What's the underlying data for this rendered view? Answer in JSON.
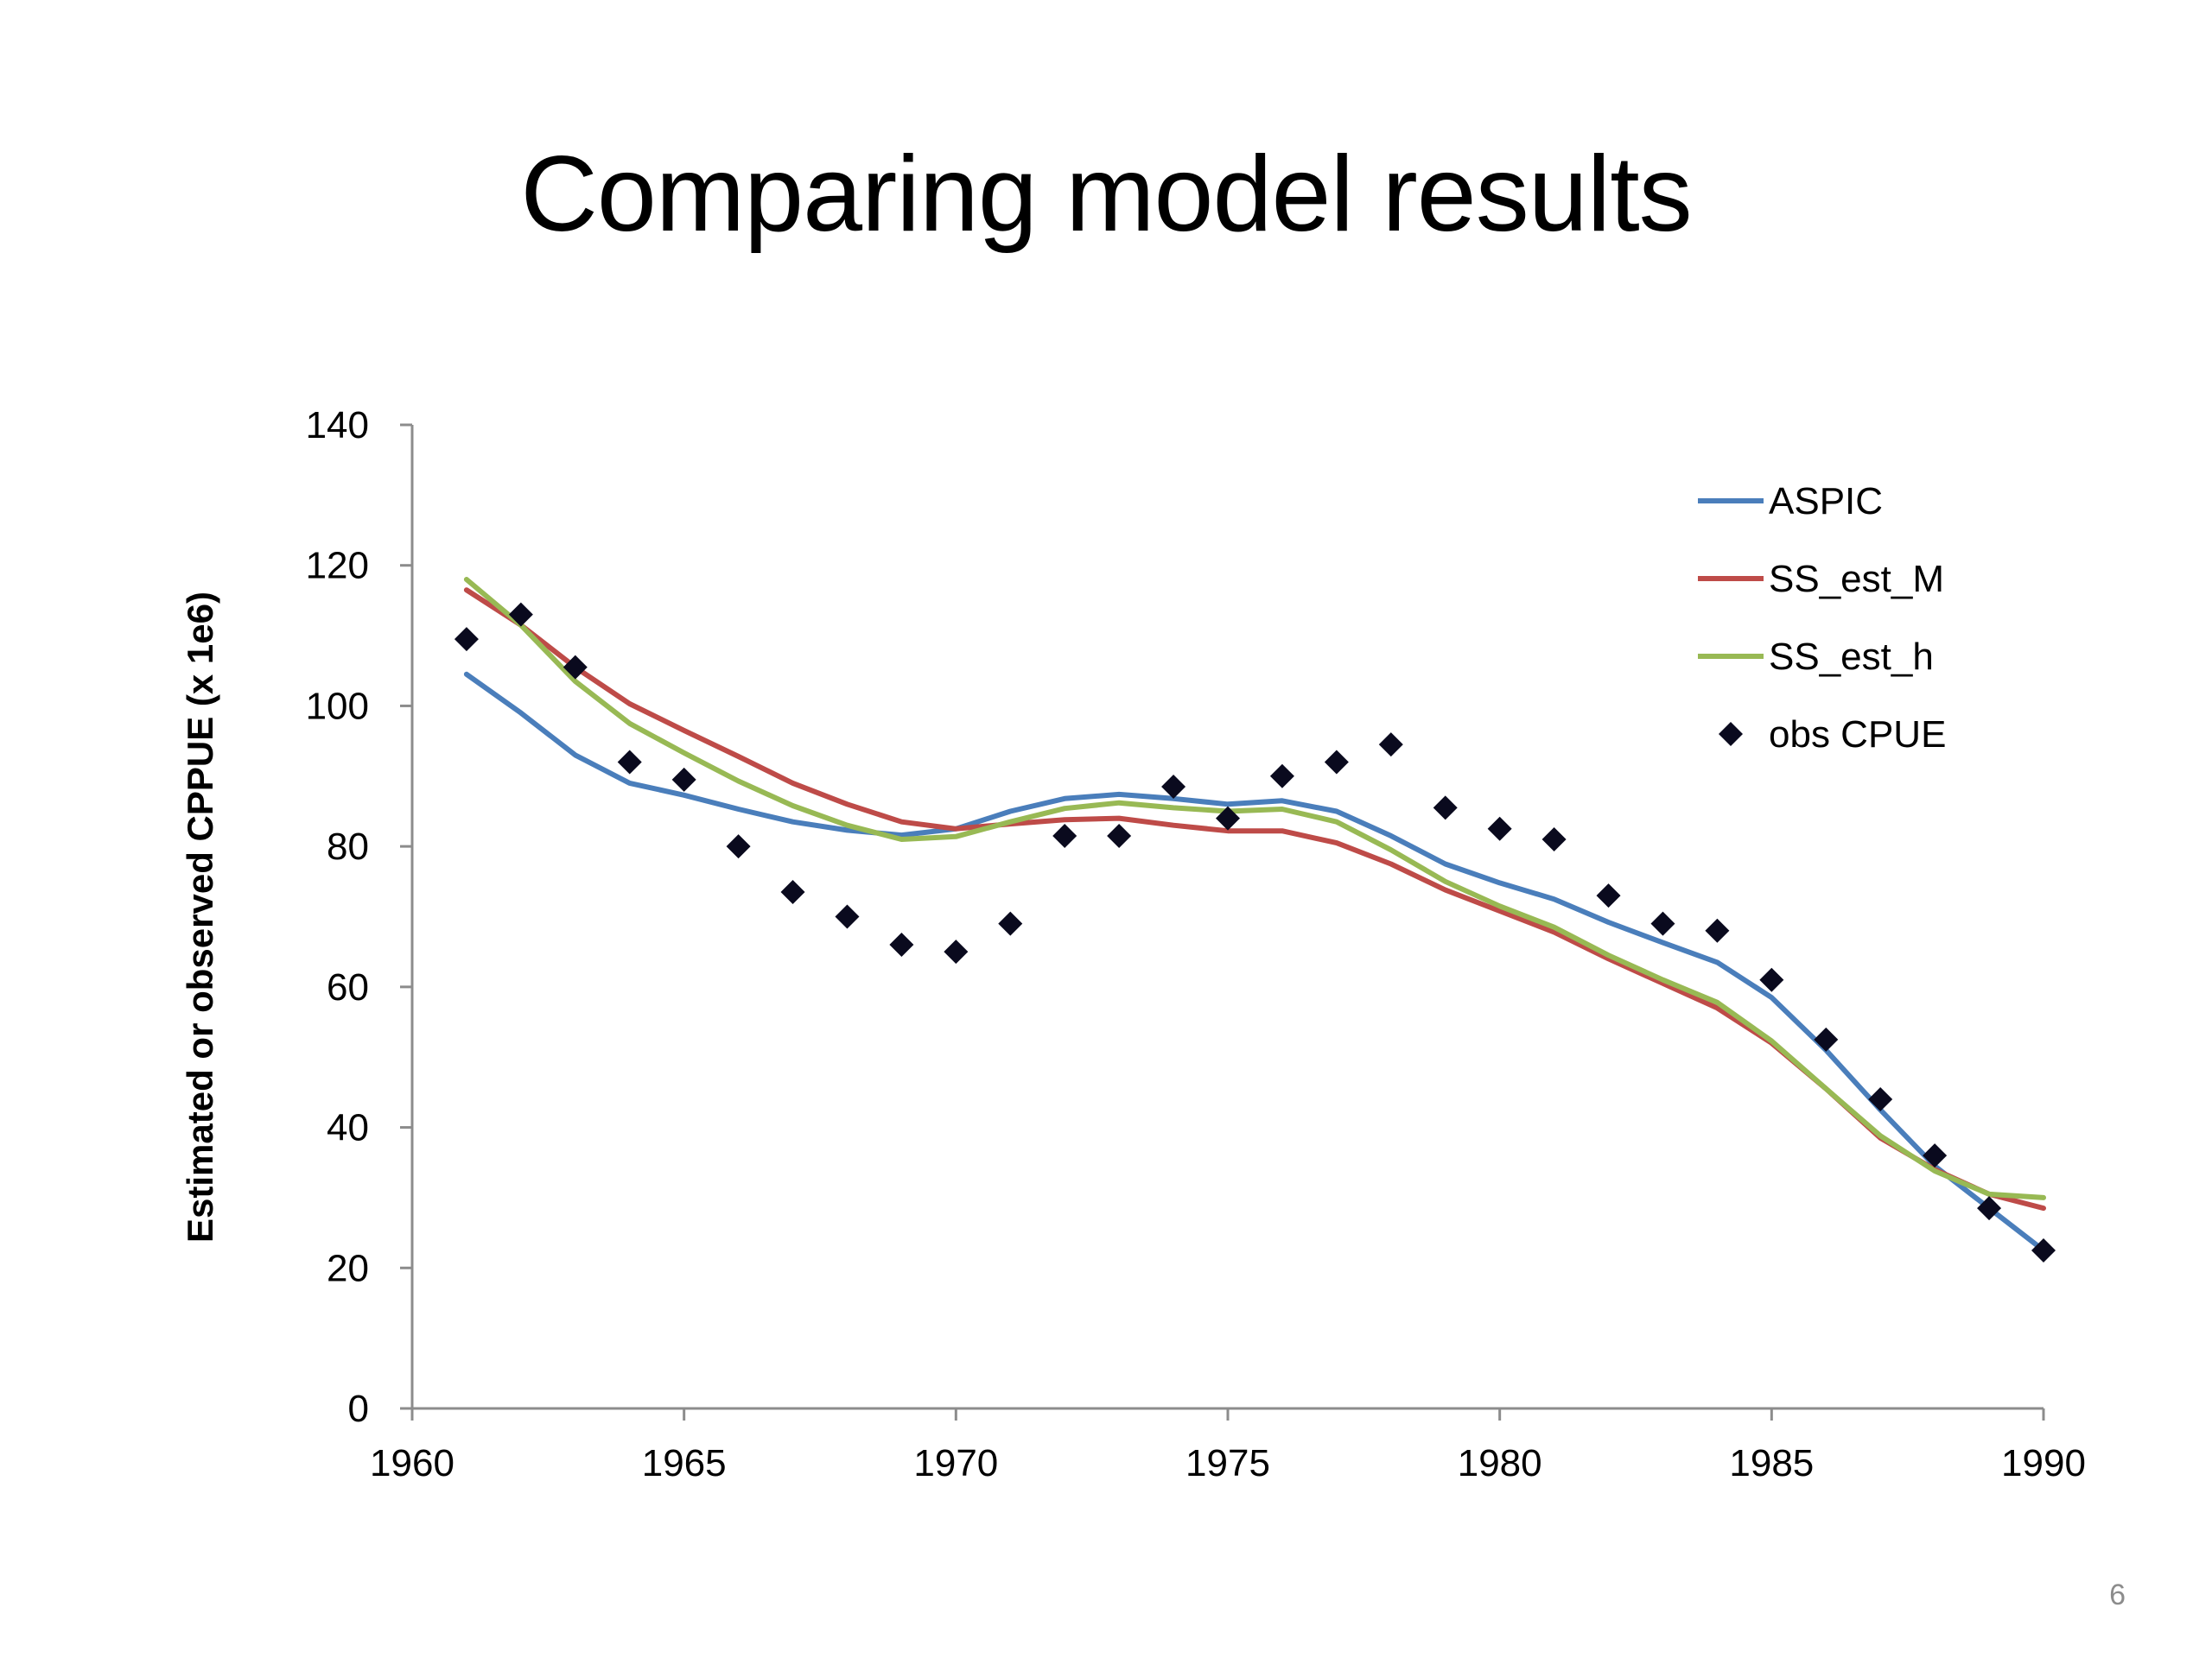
{
  "slide": {
    "title": "Comparing model results",
    "page_number": "6"
  },
  "chart_data": {
    "type": "line",
    "title": "",
    "xlabel": "",
    "ylabel": "Estimated or observed CPPUE (x 1e6)",
    "xlim": [
      1960,
      1990
    ],
    "ylim": [
      0,
      140
    ],
    "x_ticks": [
      1960,
      1965,
      1970,
      1975,
      1980,
      1985,
      1990
    ],
    "y_ticks": [
      0,
      20,
      40,
      60,
      80,
      100,
      120,
      140
    ],
    "grid": false,
    "legend_position": "top-right",
    "x": [
      1961,
      1962,
      1963,
      1964,
      1965,
      1966,
      1967,
      1968,
      1969,
      1970,
      1971,
      1972,
      1973,
      1974,
      1975,
      1976,
      1977,
      1978,
      1979,
      1980,
      1981,
      1982,
      1983,
      1984,
      1985,
      1986,
      1987,
      1988,
      1989,
      1990
    ],
    "series": [
      {
        "name": "ASPIC",
        "kind": "line",
        "color": "#4a7ebb",
        "values": [
          104.5,
          99.0,
          93.0,
          89.0,
          87.3,
          85.3,
          83.5,
          82.3,
          81.6,
          82.5,
          85.0,
          86.8,
          87.4,
          86.8,
          86.0,
          86.5,
          85.0,
          81.5,
          77.5,
          74.8,
          72.5,
          69.2,
          66.3,
          63.5,
          58.5,
          51.0,
          42.5,
          34.5,
          28.5,
          22.5
        ]
      },
      {
        "name": "SS_est_M",
        "kind": "line",
        "color": "#be4b48",
        "values": [
          116.5,
          111.5,
          105.5,
          100.3,
          96.5,
          92.8,
          89.0,
          86.0,
          83.5,
          82.5,
          83.2,
          83.8,
          84.0,
          83.0,
          82.2,
          82.2,
          80.5,
          77.5,
          73.8,
          70.8,
          67.8,
          64.0,
          60.5,
          57.0,
          52.0,
          45.5,
          38.5,
          34.0,
          30.5,
          28.5
        ]
      },
      {
        "name": "SS_est_h",
        "kind": "line",
        "color": "#98b954",
        "values": [
          118.0,
          111.5,
          103.5,
          97.5,
          93.3,
          89.3,
          85.8,
          83.0,
          81.0,
          81.4,
          83.5,
          85.4,
          86.2,
          85.5,
          85.0,
          85.3,
          83.5,
          79.5,
          75.0,
          71.5,
          68.5,
          64.5,
          61.0,
          57.8,
          52.3,
          45.5,
          38.8,
          33.8,
          30.5,
          30.0
        ]
      },
      {
        "name": "obs CPUE",
        "kind": "marker",
        "color": "#0a0a1e",
        "values": [
          109.5,
          113.0,
          105.5,
          92.0,
          89.5,
          80.0,
          73.5,
          70.0,
          66.0,
          65.0,
          69.0,
          81.5,
          81.5,
          88.5,
          84.0,
          90.0,
          92.0,
          94.5,
          85.5,
          82.5,
          81.0,
          73.0,
          69.0,
          68.0,
          61.0,
          52.5,
          44.0,
          36.0,
          28.5,
          22.5
        ]
      }
    ]
  }
}
